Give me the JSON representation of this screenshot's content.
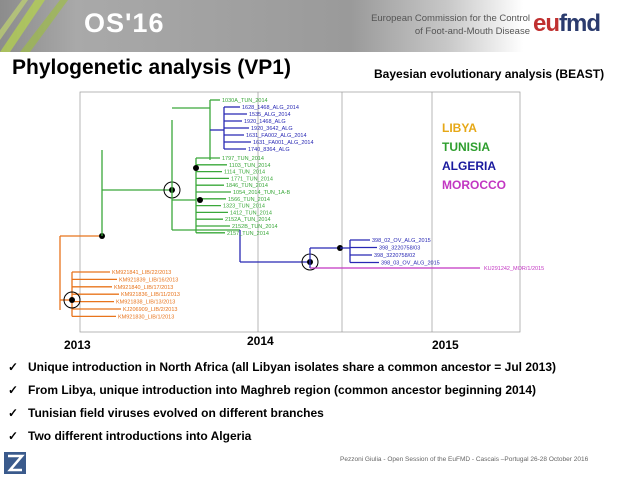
{
  "header": {
    "logo_text": "OS'16",
    "ec_line1": "European Commission for the Control",
    "ec_line2": "of Foot-and-Mouth Disease",
    "eufmd_eu": "eu",
    "eufmd_fmd": "fmd"
  },
  "title": "Phylogenetic analysis (VP1)",
  "subtitle": "Bayesian evolutionary analysis (BEAST)",
  "legend": [
    {
      "label": "LIBYA",
      "color": "#e6a817"
    },
    {
      "label": "TUNISIA",
      "color": "#2e9e2e"
    },
    {
      "label": "ALGERIA",
      "color": "#1a1a9e"
    },
    {
      "label": "MOROCCO",
      "color": "#c236c2"
    }
  ],
  "colors": {
    "libya_branch": "#e8741c",
    "tunisia_branch": "#3aa83a",
    "algeria_branch": "#2828b4",
    "morocco_branch": "#c236c2"
  },
  "years": [
    "2013",
    "2014",
    "2015"
  ],
  "taxa": {
    "tunisia_top": [
      "1030A_TUN_2014"
    ],
    "algeria_upper": [
      "1628_1468_ALG_2014",
      "1535_ALG_2014",
      "1920_1468_ALG",
      "1920_3642_ALG",
      "1631_FA002_ALG_2014",
      "1631_FA001_ALG_2014",
      "1740_8364_ALG"
    ],
    "tunisia_mid": [
      "1797_TUN_2014",
      "1103_TUN_2014",
      "1114_TUN_2014",
      "1771_TUN_2014",
      "1846_TUN_2014",
      "1054_2014_TUN_1A-B",
      "1566_TUN_2014",
      "1323_TUN_2014",
      "1412_TUN_2014",
      "2152A_TUN_2014",
      "2152B_TUN_2014",
      "2157_TUN_2014"
    ],
    "algeria_lower": [
      "398_02_OV_ALG_2015",
      "398_3220758/03",
      "398_3220758/02",
      "398_03_OV_ALG_2015"
    ],
    "morocco": [
      "KU291242_MOR/1/2015"
    ],
    "libya": [
      "KM921841_LIB/22/2013",
      "KM921839_LIB/16/2013",
      "KM921840_LIB/17/2013",
      "KM921836_LIB/11/2013",
      "KM921838_LIB/13/2013",
      "KJ206909_LIB/2/2013",
      "KM921830_LIB/1/2013"
    ]
  },
  "bullets": [
    "Unique introduction in North Africa (all Libyan isolates share a common ancestor = Jul 2013)",
    "From Libya, unique introduction into Maghreb region (common ancestor beginning 2014)",
    "Tunisian field viruses evolved on different branches",
    "Two different introductions into Algeria"
  ],
  "check_icon": "checkmark-icon",
  "footer": "Pezzoni Giulia - Open Session of the EuFMD - Cascais –Portugal 26-28 October 2016"
}
